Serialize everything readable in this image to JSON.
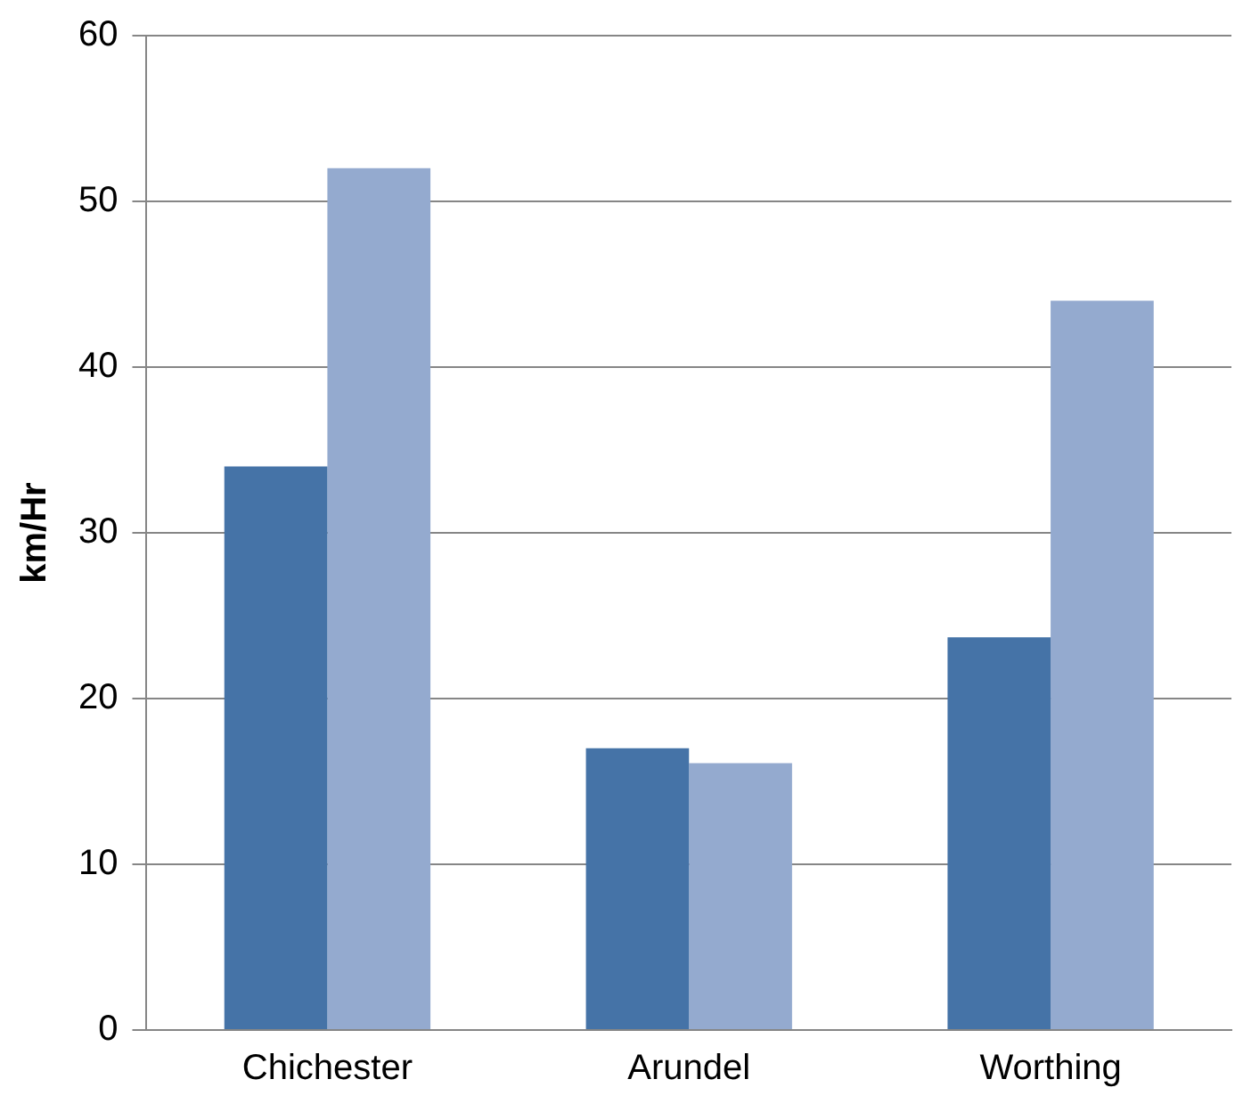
{
  "chart_data": {
    "type": "bar",
    "ylabel": "km/Hr",
    "categories": [
      "Chichester",
      "Arundel",
      "Worthing"
    ],
    "series": [
      {
        "color": "#4573a7",
        "values": [
          34,
          17,
          23.7
        ]
      },
      {
        "color": "#94aacf",
        "values": [
          52,
          16.1,
          44
        ]
      }
    ],
    "ylim": [
      0,
      60
    ],
    "yticks": [
      0,
      10,
      20,
      30,
      40,
      50,
      60
    ],
    "grid": "y",
    "legend": false
  }
}
